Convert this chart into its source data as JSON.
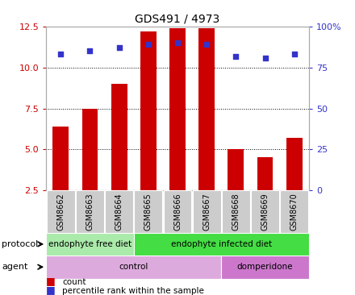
{
  "title": "GDS491 / 4973",
  "samples": [
    "GSM8662",
    "GSM8663",
    "GSM8664",
    "GSM8665",
    "GSM8666",
    "GSM8667",
    "GSM8668",
    "GSM8669",
    "GSM8670"
  ],
  "bar_values": [
    6.4,
    7.5,
    9.0,
    12.2,
    12.4,
    12.4,
    5.0,
    4.5,
    5.7
  ],
  "dot_values": [
    83,
    85,
    87,
    89,
    90,
    89,
    82,
    81,
    83
  ],
  "ylim_left": [
    2.5,
    12.5
  ],
  "ylim_right": [
    0,
    100
  ],
  "yticks_left": [
    2.5,
    5.0,
    7.5,
    10.0,
    12.5
  ],
  "yticks_right": [
    0,
    25,
    50,
    75,
    100
  ],
  "bar_color": "#cc0000",
  "dot_color": "#3333cc",
  "protocol_groups": [
    {
      "label": "endophyte free diet",
      "start": 0,
      "end": 3,
      "color": "#aaeaaa"
    },
    {
      "label": "endophyte infected diet",
      "start": 3,
      "end": 9,
      "color": "#44dd44"
    }
  ],
  "agent_groups": [
    {
      "label": "control",
      "start": 0,
      "end": 6,
      "color": "#ddaadd"
    },
    {
      "label": "domperidone",
      "start": 6,
      "end": 9,
      "color": "#cc77cc"
    }
  ],
  "protocol_label": "protocol",
  "agent_label": "agent",
  "legend_count_label": "count",
  "legend_pct_label": "percentile rank within the sample",
  "bg_color": "#ffffff",
  "tick_label_color_left": "#cc0000",
  "tick_label_color_right": "#3333cc",
  "sample_bg_color": "#cccccc",
  "border_color": "#aaaaaa"
}
